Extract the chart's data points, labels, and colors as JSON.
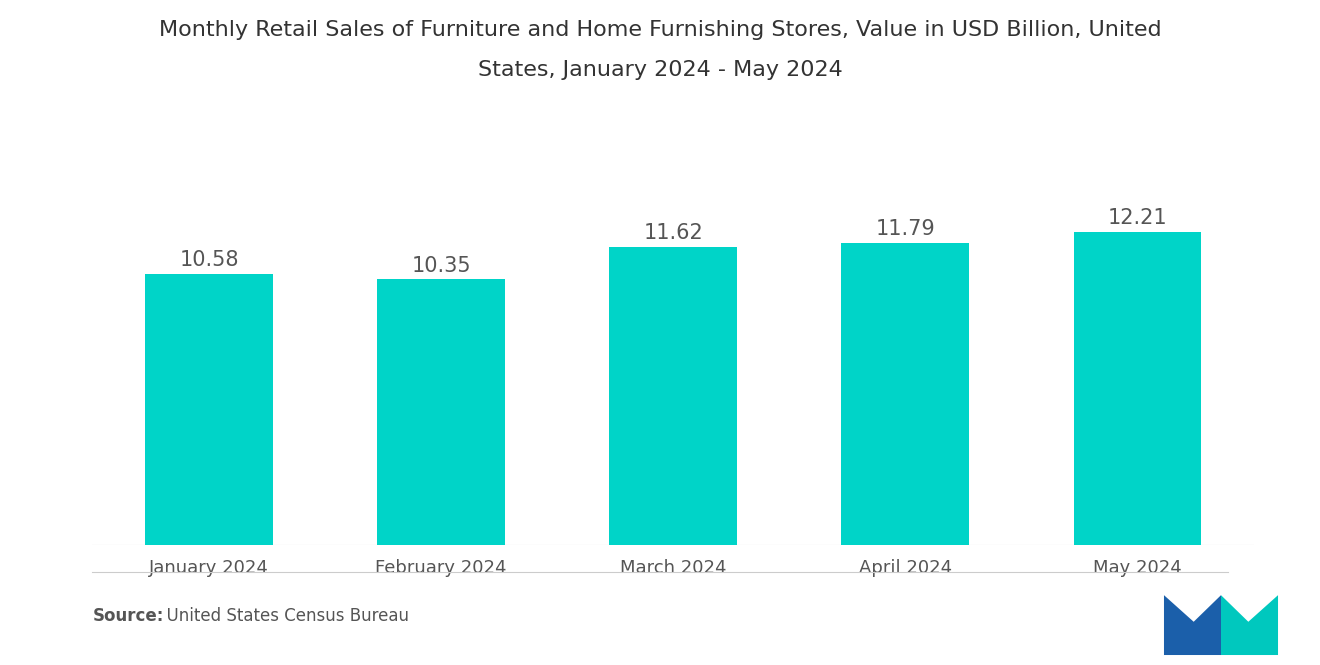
{
  "title_line1": "Monthly Retail Sales of Furniture and Home Furnishing Stores, Value in USD Billion, United",
  "title_line2": "States, January 2024 - May 2024",
  "categories": [
    "January 2024",
    "February 2024",
    "March 2024",
    "April 2024",
    "May 2024"
  ],
  "values": [
    10.58,
    10.35,
    11.62,
    11.79,
    12.21
  ],
  "bar_color": "#00D4C8",
  "label_color": "#555555",
  "title_color": "#333333",
  "source_bold": "Source:",
  "source_normal": "  United States Census Bureau",
  "background_color": "#ffffff",
  "ylim": [
    0,
    14.5
  ],
  "bar_width": 0.55,
  "title_fontsize": 16,
  "label_fontsize": 15,
  "tick_fontsize": 13,
  "source_fontsize": 12,
  "logo_blue": "#1B5FAA",
  "logo_teal": "#00C8BE"
}
